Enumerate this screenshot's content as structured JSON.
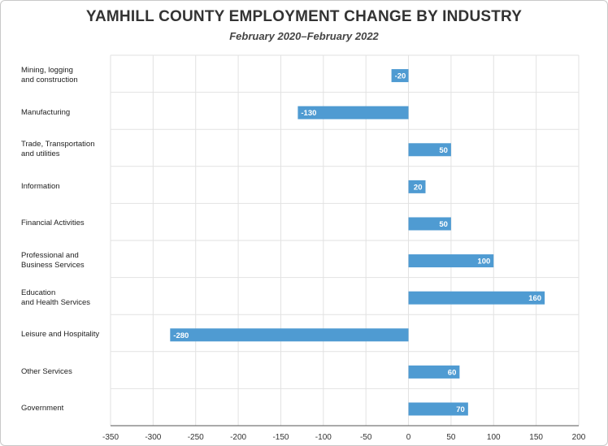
{
  "chart_data": {
    "type": "bar",
    "orientation": "horizontal",
    "title": "YAMHILL COUNTY EMPLOYMENT CHANGE BY INDUSTRY",
    "subtitle": "February 2020–February 2022",
    "categories": [
      "Mining, logging\nand construction",
      "Manufacturing",
      "Trade, Transportation\nand utilities",
      "Information",
      "Financial Activities",
      "Professional and\nBusiness Services",
      "Education\nand Health Services",
      "Leisure and Hospitality",
      "Other Services",
      "Government"
    ],
    "values": [
      -20,
      -130,
      50,
      20,
      50,
      100,
      160,
      -280,
      60,
      70
    ],
    "xlim": [
      -350,
      200
    ],
    "xticks": [
      -350,
      -300,
      -250,
      -200,
      -150,
      -100,
      -50,
      0,
      50,
      100,
      150,
      200
    ],
    "grid": true,
    "bar_color": "#4f9bd2",
    "grid_color": "#e2e2e2",
    "axis_color": "#555555"
  }
}
